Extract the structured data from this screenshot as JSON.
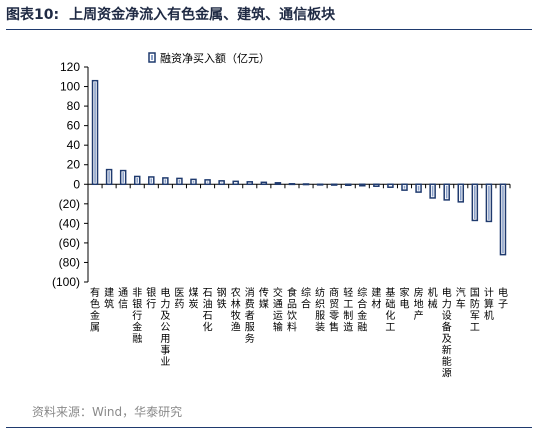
{
  "figure": {
    "label": "图表10:",
    "title": "上周资金净流入有色金属、建筑、通信板块",
    "source": "资料来源：Wind，华泰研究"
  },
  "colors": {
    "bar_stroke": "#1f3a6e",
    "bar_fill": "#ffffff",
    "bar_inner": "#8aa0c8",
    "title": "#1f2a44",
    "rule": "#1f3a6e",
    "source": "#8a8a8a"
  },
  "chart_data": {
    "type": "bar",
    "legend": {
      "label": "融资净买入额（亿元）",
      "position": "top-center"
    },
    "ylim": [
      -100,
      120
    ],
    "yticks": [
      120,
      100,
      80,
      60,
      40,
      20,
      0,
      -20,
      -40,
      -60,
      -80,
      -100
    ],
    "ytick_labels": [
      "120",
      "100",
      "80",
      "60",
      "40",
      "20",
      "0",
      "(20)",
      "(40)",
      "(60)",
      "(80)",
      "(100)"
    ],
    "grid": false,
    "categories": [
      "有色金属",
      "建筑",
      "通信",
      "非银行金融",
      "银行",
      "电力及公用事业",
      "医药",
      "煤炭",
      "石油石化",
      "钢铁",
      "农林牧渔",
      "消费者服务",
      "传媒",
      "交通运输",
      "食品饮料",
      "综合",
      "纺织服装",
      "商贸零售",
      "轻工制造",
      "综合金融",
      "建材",
      "基础化工",
      "家电",
      "房地产",
      "机械",
      "电力设备及新能源",
      "汽车",
      "国防军工",
      "计算机",
      "电子"
    ],
    "values": [
      106,
      15,
      14,
      8,
      7.5,
      6.5,
      6,
      5,
      4.5,
      3.5,
      3,
      2.5,
      2,
      1.5,
      0.5,
      0.3,
      -0.5,
      -0.8,
      -1,
      -1.5,
      -2,
      -3,
      -6,
      -8,
      -14,
      -16,
      -18,
      -37,
      -38,
      -72
    ]
  }
}
